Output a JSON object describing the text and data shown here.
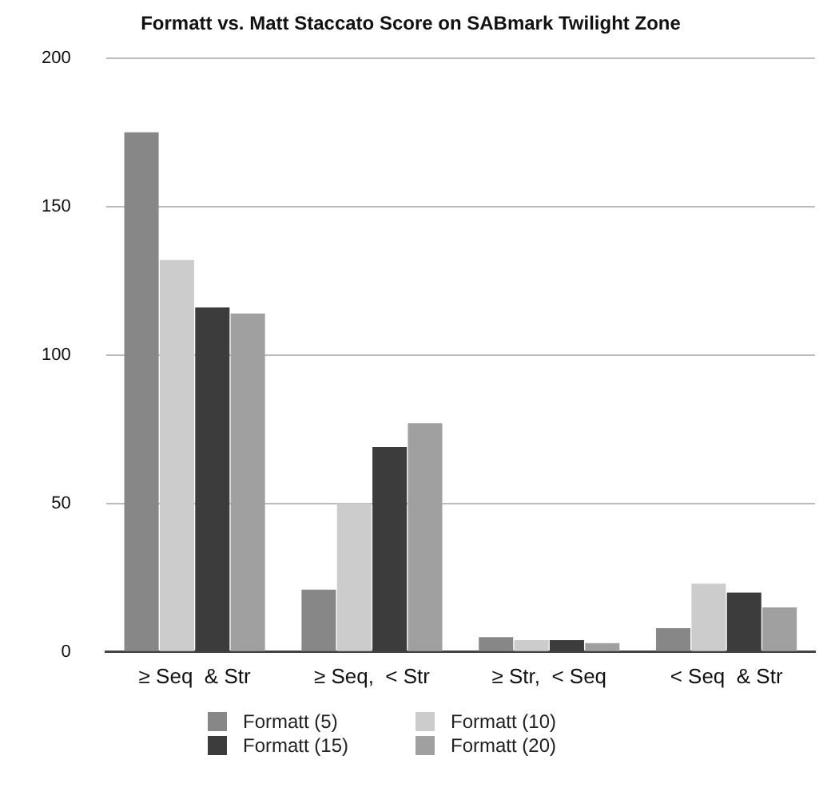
{
  "chart_data": {
    "type": "bar",
    "title": "Formatt vs. Matt Staccato Score on SABmark Twilight Zone",
    "categories": [
      "≥ Seq  & Str",
      "≥ Seq,  < Str",
      "≥ Str,  < Seq",
      "< Seq  & Str"
    ],
    "series": [
      {
        "name": "Formatt (5)",
        "color": "#878787",
        "values": [
          175,
          21,
          5,
          8
        ]
      },
      {
        "name": "Formatt (10)",
        "color": "#cccccc",
        "values": [
          132,
          50,
          4,
          23
        ]
      },
      {
        "name": "Formatt (15)",
        "color": "#3b3c3b",
        "values": [
          116,
          69,
          4,
          20
        ]
      },
      {
        "name": "Formatt (20)",
        "color": "#a0a0a0",
        "values": [
          114,
          77,
          3,
          15
        ]
      }
    ],
    "ylim": [
      0,
      200
    ],
    "yticks": [
      0,
      50,
      100,
      150,
      200
    ],
    "grid": "y",
    "legend": "bottom"
  }
}
